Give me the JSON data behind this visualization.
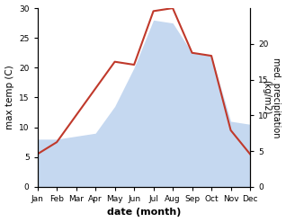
{
  "months": [
    "Jan",
    "Feb",
    "Mar",
    "Apr",
    "May",
    "Jun",
    "Jul",
    "Aug",
    "Sep",
    "Oct",
    "Nov",
    "Dec"
  ],
  "temp": [
    5.5,
    7.5,
    12.0,
    16.5,
    21.0,
    20.5,
    29.5,
    30.0,
    22.5,
    22.0,
    9.5,
    5.5
  ],
  "precip": [
    8.0,
    8.0,
    8.5,
    9.0,
    13.5,
    20.0,
    28.0,
    27.5,
    22.5,
    22.0,
    11.0,
    10.5
  ],
  "temp_color": "#c0392b",
  "precip_fill_color": "#c5d8f0",
  "xlabel": "date (month)",
  "ylabel_left": "max temp (C)",
  "ylabel_right": "med. precipitation\n(kg/m2)",
  "ylim_left": [
    0,
    30
  ],
  "ylim_right": [
    0,
    25
  ],
  "yticks_left": [
    0,
    5,
    10,
    15,
    20,
    25,
    30
  ],
  "yticks_right_vals": [
    0,
    5,
    10,
    15,
    20
  ],
  "yticks_right_labels": [
    "0",
    "5",
    "10",
    "15",
    "20"
  ],
  "background_color": "#ffffff"
}
